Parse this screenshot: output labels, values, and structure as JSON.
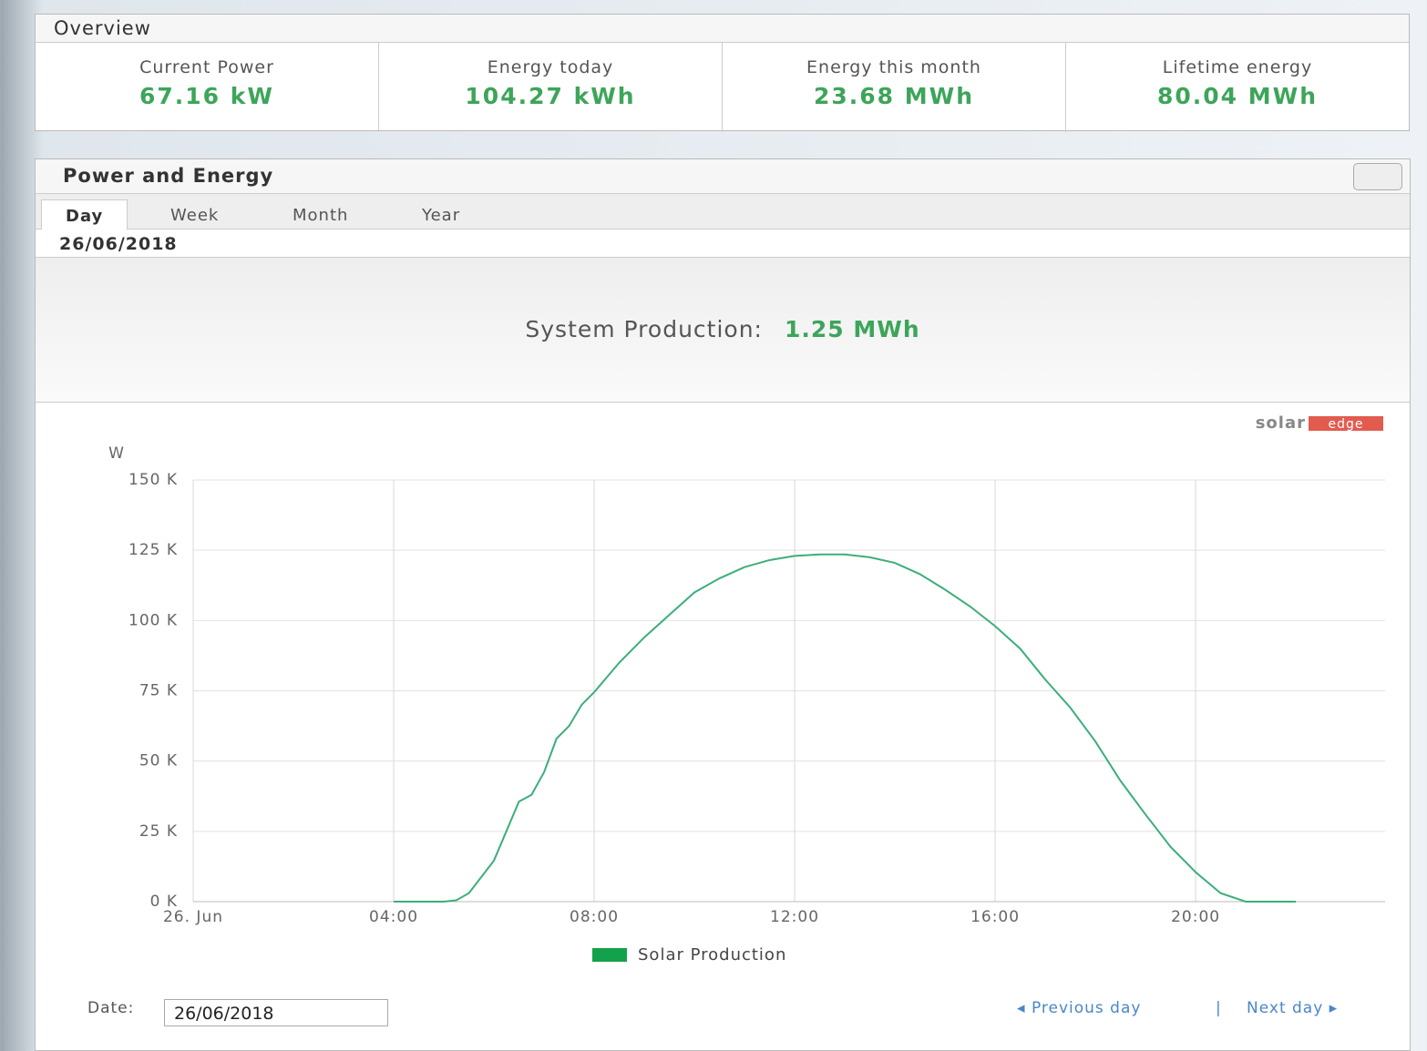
{
  "overview": {
    "title": "Overview",
    "items": [
      {
        "label": "Current Power",
        "value": "67.16 kW"
      },
      {
        "label": "Energy today",
        "value": "104.27 kWh"
      },
      {
        "label": "Energy this month",
        "value": "23.68 MWh"
      },
      {
        "label": "Lifetime energy",
        "value": "80.04 MWh"
      }
    ]
  },
  "panel": {
    "title": "Power and Energy",
    "tabs": [
      "Day",
      "Week",
      "Month",
      "Year"
    ],
    "date": "26/06/2018",
    "production_label": "System Production:",
    "production_value": "1.25 MWh",
    "brand": [
      "solar",
      "edge"
    ],
    "date_label": "Date:",
    "previous": "Previous day",
    "separator": "|",
    "next": "Next day"
  },
  "chart_data": {
    "type": "line",
    "y_label": "W",
    "x": [
      4,
      5,
      5.25,
      5.5,
      6,
      6.5,
      6.75,
      7,
      7.25,
      7.5,
      7.75,
      8,
      8.5,
      9,
      9.5,
      10,
      10.5,
      11,
      11.5,
      12,
      12.5,
      13,
      13.5,
      14,
      14.5,
      15,
      15.5,
      16,
      16.5,
      17,
      17.5,
      18,
      18.5,
      19,
      19.5,
      20,
      20.5,
      21,
      22
    ],
    "series": [
      {
        "name": "Solar Production",
        "color": "#3cae7a",
        "legend_color": "#13a24b",
        "values": [
          0,
          0,
          500,
          3000,
          14600,
          35600,
          38000,
          46000,
          58000,
          62500,
          70000,
          74500,
          85000,
          94000,
          102000,
          110000,
          115000,
          119000,
          121500,
          123000,
          123500,
          123500,
          122500,
          120500,
          116500,
          111000,
          105000,
          98000,
          90000,
          79000,
          69000,
          57000,
          43000,
          31000,
          19500,
          10500,
          3000,
          0,
          0
        ]
      }
    ],
    "xlim": [
      0,
      23.78
    ],
    "xticks": [
      {
        "value": 0,
        "label": "26. Jun"
      },
      {
        "value": 4,
        "label": "04:00"
      },
      {
        "value": 8,
        "label": "08:00"
      },
      {
        "value": 12,
        "label": "12:00"
      },
      {
        "value": 16,
        "label": "16:00"
      },
      {
        "value": 20,
        "label": "20:00"
      }
    ],
    "ylim": [
      0,
      150000
    ],
    "yticks": [
      {
        "value": 0,
        "label": "0 K"
      },
      {
        "value": 25000,
        "label": "25 K"
      },
      {
        "value": 50000,
        "label": "50 K"
      },
      {
        "value": 75000,
        "label": "75 K"
      },
      {
        "value": 100000,
        "label": "100 K"
      },
      {
        "value": 125000,
        "label": "125 K"
      },
      {
        "value": 150000,
        "label": "150 K"
      }
    ],
    "grid": true
  }
}
